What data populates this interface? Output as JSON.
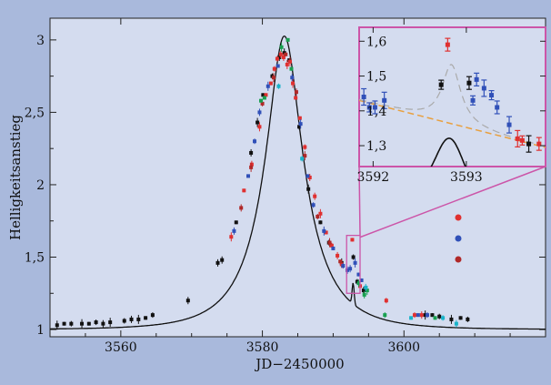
{
  "chart_data": {
    "type": "scatter",
    "xlabel": "JD−2450000",
    "ylabel": "Helligkeitsanstieg",
    "xlim": [
      3550,
      3620
    ],
    "ylim": [
      0.95,
      3.15
    ],
    "xticks": [
      3560,
      3580,
      3600
    ],
    "yticks": [
      1,
      1.5,
      2,
      2.5,
      3
    ],
    "ytick_labels": [
      "1",
      "1,5",
      "2",
      "2,5",
      "3"
    ],
    "grid": false,
    "model": {
      "u0": 0.345,
      "t0": 3583.1,
      "tE": 7.5
    },
    "series": [
      {
        "color": "#111111",
        "points": [
          [
            3551,
            1.03
          ],
          [
            3552,
            1.04
          ],
          [
            3553,
            1.04
          ],
          [
            3554.5,
            1.04
          ],
          [
            3555.5,
            1.04
          ],
          [
            3556.5,
            1.05
          ],
          [
            3557.5,
            1.04
          ],
          [
            3558.5,
            1.05
          ],
          [
            3560.5,
            1.06
          ],
          [
            3561.5,
            1.07
          ],
          [
            3562.5,
            1.07
          ],
          [
            3563.5,
            1.08
          ],
          [
            3564.5,
            1.1
          ],
          [
            3569.5,
            1.2
          ],
          [
            3573.7,
            1.46
          ],
          [
            3574.3,
            1.48
          ],
          [
            3576.3,
            1.74
          ],
          [
            3578.4,
            2.22
          ],
          [
            3579.3,
            2.43
          ],
          [
            3580.1,
            2.62
          ],
          [
            3581.4,
            2.75
          ],
          [
            3582.4,
            2.88
          ],
          [
            3583.1,
            2.91
          ],
          [
            3583.8,
            2.86
          ],
          [
            3585.2,
            2.4
          ],
          [
            3586.5,
            1.97
          ],
          [
            3588.2,
            1.74
          ],
          [
            3589.4,
            1.6
          ],
          [
            3591.2,
            1.46
          ],
          [
            3592.85,
            1.5
          ],
          [
            3593.4,
            1.33
          ],
          [
            3594.3,
            1.27
          ],
          [
            3603,
            1.1
          ],
          [
            3604,
            1.1
          ],
          [
            3605,
            1.09
          ],
          [
            3606.7,
            1.07
          ],
          [
            3608,
            1.08
          ],
          [
            3609,
            1.07
          ]
        ]
      },
      {
        "color": "#e03030",
        "points": [
          [
            3575.6,
            1.64
          ],
          [
            3577.4,
            1.96
          ],
          [
            3578.5,
            2.14
          ],
          [
            3579.6,
            2.4
          ],
          [
            3580.5,
            2.62
          ],
          [
            3581.2,
            2.7
          ],
          [
            3581.7,
            2.8
          ],
          [
            3582.1,
            2.87
          ],
          [
            3582.6,
            2.9
          ],
          [
            3583,
            2.88
          ],
          [
            3583.5,
            2.83
          ],
          [
            3583.9,
            2.85
          ],
          [
            3584.3,
            2.7
          ],
          [
            3584.7,
            2.6
          ],
          [
            3585.3,
            2.46
          ],
          [
            3586,
            2.26
          ],
          [
            3586.7,
            2.05
          ],
          [
            3587.4,
            1.92
          ],
          [
            3588.2,
            1.8
          ],
          [
            3589,
            1.67
          ],
          [
            3589.8,
            1.58
          ],
          [
            3590.6,
            1.51
          ],
          [
            3591.2,
            1.45
          ],
          [
            3592.7,
            1.62
          ],
          [
            3593.8,
            1.3
          ],
          [
            3597.5,
            1.2
          ],
          [
            3601.5,
            1.1
          ],
          [
            3602.5,
            1.1
          ]
        ]
      },
      {
        "color": "#3050b8",
        "points": [
          [
            3576,
            1.68
          ],
          [
            3578,
            2.06
          ],
          [
            3578.9,
            2.3
          ],
          [
            3579.6,
            2.5
          ],
          [
            3580.8,
            2.68
          ],
          [
            3582.2,
            2.82
          ],
          [
            3584.2,
            2.74
          ],
          [
            3585.4,
            2.42
          ],
          [
            3586.4,
            2.06
          ],
          [
            3587.2,
            1.86
          ],
          [
            3588.7,
            1.68
          ],
          [
            3590,
            1.56
          ],
          [
            3591.4,
            1.44
          ],
          [
            3592,
            1.41
          ],
          [
            3592.4,
            1.42
          ],
          [
            3593.1,
            1.46
          ],
          [
            3593.6,
            1.38
          ],
          [
            3594,
            1.34
          ],
          [
            3602,
            1.1
          ],
          [
            3603.3,
            1.1
          ]
        ]
      },
      {
        "color": "#b02828",
        "points": [
          [
            3577,
            1.84
          ],
          [
            3578.4,
            2.12
          ],
          [
            3580,
            2.56
          ],
          [
            3581.6,
            2.74
          ],
          [
            3583.3,
            2.9
          ],
          [
            3584.8,
            2.64
          ],
          [
            3586,
            2.2
          ],
          [
            3587.8,
            1.78
          ],
          [
            3589.5,
            1.6
          ],
          [
            3591,
            1.47
          ]
        ]
      },
      {
        "color": "#18a050",
        "points": [
          [
            3579.8,
            2.58
          ],
          [
            3580.3,
            2.6
          ],
          [
            3582.7,
            2.95
          ],
          [
            3583.6,
            3.0
          ],
          [
            3584.1,
            2.8
          ],
          [
            3593.6,
            1.32
          ],
          [
            3594.4,
            1.24
          ],
          [
            3594.8,
            1.27
          ],
          [
            3597.3,
            1.1
          ],
          [
            3604.4,
            1.08
          ]
        ]
      },
      {
        "color": "#19b3c9",
        "points": [
          [
            3582.3,
            2.68
          ],
          [
            3585.6,
            2.18
          ],
          [
            3594.6,
            1.29
          ],
          [
            3601,
            1.08
          ],
          [
            3605.5,
            1.08
          ],
          [
            3607.4,
            1.04
          ]
        ]
      }
    ]
  },
  "inset": {
    "xlim": [
      3591.85,
      3593.85
    ],
    "ylim": [
      1.24,
      1.64
    ],
    "xticks": [
      3592,
      3593
    ],
    "xtick_labels": [
      "3592",
      "3593"
    ],
    "yticks": [
      1.3,
      1.4,
      1.5,
      1.6
    ],
    "ytick_labels": [
      "1,3",
      "1,4",
      "1,5",
      "1,6"
    ],
    "zoom_region": {
      "x": [
        3591.9,
        3593.8
      ],
      "y": [
        1.25,
        1.65
      ]
    },
    "series": [
      {
        "color": "#111111",
        "points": [
          [
            3592.73,
            1.475
          ],
          [
            3593.03,
            1.48
          ],
          [
            3593.67,
            1.305
          ]
        ]
      },
      {
        "color": "#e03030",
        "points": [
          [
            3592.8,
            1.59
          ],
          [
            3593.55,
            1.32
          ],
          [
            3593.6,
            1.315
          ],
          [
            3593.78,
            1.305
          ]
        ]
      },
      {
        "color": "#3050b8",
        "points": [
          [
            3591.9,
            1.44
          ],
          [
            3591.96,
            1.41
          ],
          [
            3592.02,
            1.41
          ],
          [
            3592.12,
            1.43
          ],
          [
            3593.07,
            1.43
          ],
          [
            3593.11,
            1.49
          ],
          [
            3593.19,
            1.465
          ],
          [
            3593.27,
            1.445
          ],
          [
            3593.33,
            1.41
          ],
          [
            3593.46,
            1.36
          ]
        ]
      }
    ],
    "dashed_line": {
      "color": "#e8a040",
      "points": [
        [
          3591.85,
          1.43
        ],
        [
          3593.85,
          1.295
        ]
      ]
    },
    "gray_curve_color": "#aaaaaa",
    "border_color": "#cc55a8"
  },
  "legend_dots": [
    {
      "color": "#e03030"
    },
    {
      "color": "#3050b8"
    },
    {
      "color": "#b02828"
    }
  ]
}
